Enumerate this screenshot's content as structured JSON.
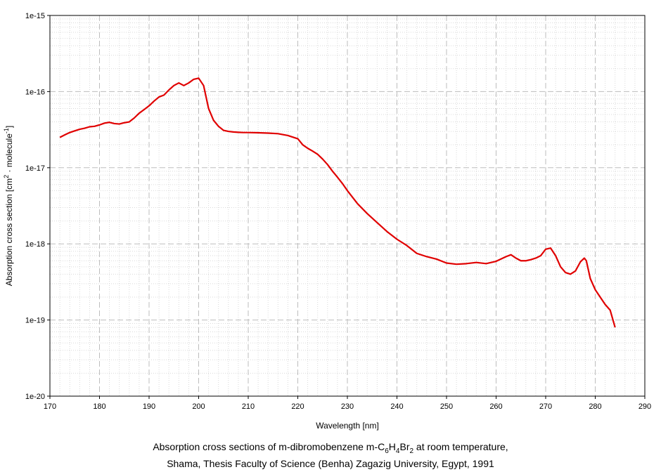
{
  "chart_data": {
    "type": "line",
    "xlabel": "Wavelength [nm]",
    "ylabel": {
      "prefix": "Absorption cross section [cm",
      "sup1": "2",
      "middle": " · molecule",
      "sup2": "-1",
      "suffix": "]"
    },
    "xlim": [
      170,
      290
    ],
    "ylim": [
      1e-20,
      1e-15
    ],
    "yscale": "log",
    "grid": true,
    "x_ticks": [
      "170",
      "180",
      "190",
      "200",
      "210",
      "220",
      "230",
      "240",
      "250",
      "260",
      "270",
      "280",
      "290"
    ],
    "y_ticks": [
      "1e-20",
      "1e-19",
      "1e-18",
      "1e-17",
      "1e-16",
      "1e-15"
    ],
    "line_color": "#e00000",
    "series": [
      {
        "x": [
          172,
          173,
          174,
          175,
          176,
          177,
          178,
          179,
          180,
          181,
          182,
          183,
          184,
          185,
          186,
          187,
          188,
          189,
          190,
          191,
          192,
          193,
          194,
          195,
          196,
          197,
          198,
          199,
          200,
          201,
          202,
          203,
          204,
          205,
          206,
          207,
          208,
          209,
          210,
          212,
          214,
          216,
          218,
          220,
          221,
          222,
          223,
          224,
          225,
          226,
          227,
          228,
          229,
          230,
          232,
          234,
          236,
          238,
          240,
          242,
          244,
          246,
          248,
          250,
          252,
          254,
          256,
          258,
          260,
          262,
          263,
          264,
          265,
          266,
          267,
          268,
          269,
          270,
          271,
          272,
          273,
          274,
          275,
          276,
          277,
          277.8,
          278.2,
          279,
          280,
          281,
          282,
          283,
          284
        ],
        "y": [
          2.5e-17,
          2.7e-17,
          2.9e-17,
          3.05e-17,
          3.2e-17,
          3.3e-17,
          3.45e-17,
          3.5e-17,
          3.65e-17,
          3.85e-17,
          3.95e-17,
          3.8e-17,
          3.75e-17,
          3.9e-17,
          4e-17,
          4.5e-17,
          5.2e-17,
          5.8e-17,
          6.5e-17,
          7.5e-17,
          8.5e-17,
          9e-17,
          1.05e-16,
          1.2e-16,
          1.3e-16,
          1.2e-16,
          1.3e-16,
          1.45e-16,
          1.5e-16,
          1.2e-16,
          6e-17,
          4.2e-17,
          3.5e-17,
          3.1e-17,
          3e-17,
          2.95e-17,
          2.92e-17,
          2.9e-17,
          2.9e-17,
          2.88e-17,
          2.85e-17,
          2.8e-17,
          2.65e-17,
          2.4e-17,
          2e-17,
          1.8e-17,
          1.65e-17,
          1.5e-17,
          1.3e-17,
          1.1e-17,
          9e-18,
          7.5e-18,
          6.2e-18,
          5e-18,
          3.4e-18,
          2.5e-18,
          1.9e-18,
          1.45e-18,
          1.15e-18,
          9.5e-19,
          7.5e-19,
          6.8e-19,
          6.3e-19,
          5.6e-19,
          5.4e-19,
          5.5e-19,
          5.7e-19,
          5.5e-19,
          5.9e-19,
          6.8e-19,
          7.2e-19,
          6.5e-19,
          6e-19,
          6e-19,
          6.2e-19,
          6.5e-19,
          7e-19,
          8.5e-19,
          8.8e-19,
          7e-19,
          5e-19,
          4.2e-19,
          4e-19,
          4.4e-19,
          5.8e-19,
          6.5e-19,
          6e-19,
          3.5e-19,
          2.5e-19,
          2e-19,
          1.6e-19,
          1.35e-19,
          8e-20
        ]
      }
    ]
  },
  "caption": {
    "line1_a": "Absorption cross sections of m-dibromobenzene m-C",
    "line1_s1": "6",
    "line1_b": "H",
    "line1_s2": "4",
    "line1_c": "Br",
    "line1_s3": "2",
    "line1_d": " at room temperature,",
    "line2": "Shama, Thesis Faculty of Science (Benha) Zagazig University, Egypt, 1991"
  }
}
